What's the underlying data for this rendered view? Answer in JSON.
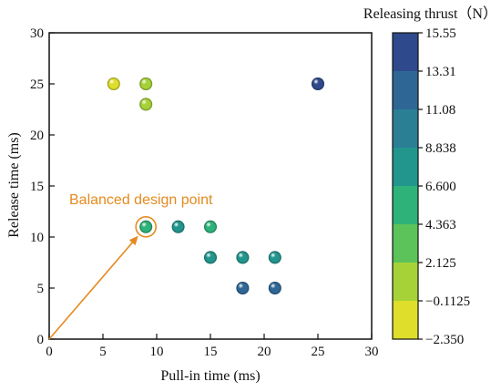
{
  "chart_data": {
    "type": "scatter",
    "xlabel": "Pull-in time (ms)",
    "ylabel": "Release time (ms)",
    "xlim": [
      0,
      30
    ],
    "ylim": [
      0,
      30
    ],
    "x_ticks": [
      0,
      5,
      10,
      15,
      20,
      25,
      30
    ],
    "y_ticks": [
      0,
      5,
      10,
      15,
      20,
      25,
      30
    ],
    "grid": false,
    "colorbar": {
      "title": "Releasing thrust（N）",
      "range": [
        -2.35,
        15.55
      ],
      "tick_labels": [
        "15.55",
        "13.31",
        "11.08",
        "8.838",
        "6.600",
        "4.363",
        "2.125",
        "−0.1125",
        "−2.350"
      ],
      "band_colors": [
        "#2f4a8c",
        "#2e6796",
        "#2b7f95",
        "#22968c",
        "#2eb27a",
        "#5cc25a",
        "#a6d237",
        "#dede2b"
      ]
    },
    "points": [
      {
        "x": 6,
        "y": 25,
        "value": -1.2
      },
      {
        "x": 9,
        "y": 25,
        "value": 1.0
      },
      {
        "x": 9,
        "y": 23,
        "value": 1.0
      },
      {
        "x": 25,
        "y": 25,
        "value": 14.4
      },
      {
        "x": 9,
        "y": 11,
        "value": 5.5
      },
      {
        "x": 12,
        "y": 11,
        "value": 7.7
      },
      {
        "x": 15,
        "y": 11,
        "value": 5.5
      },
      {
        "x": 15,
        "y": 8,
        "value": 7.7
      },
      {
        "x": 18,
        "y": 8,
        "value": 7.7
      },
      {
        "x": 21,
        "y": 8,
        "value": 7.7
      },
      {
        "x": 18,
        "y": 5,
        "value": 12.2
      },
      {
        "x": 21,
        "y": 5,
        "value": 12.2
      }
    ],
    "annotation": {
      "text": "Balanced design point",
      "color": "#e58a1f",
      "target": {
        "x": 9,
        "y": 11
      },
      "arrow_from": {
        "x": 0,
        "y": 0
      }
    }
  }
}
